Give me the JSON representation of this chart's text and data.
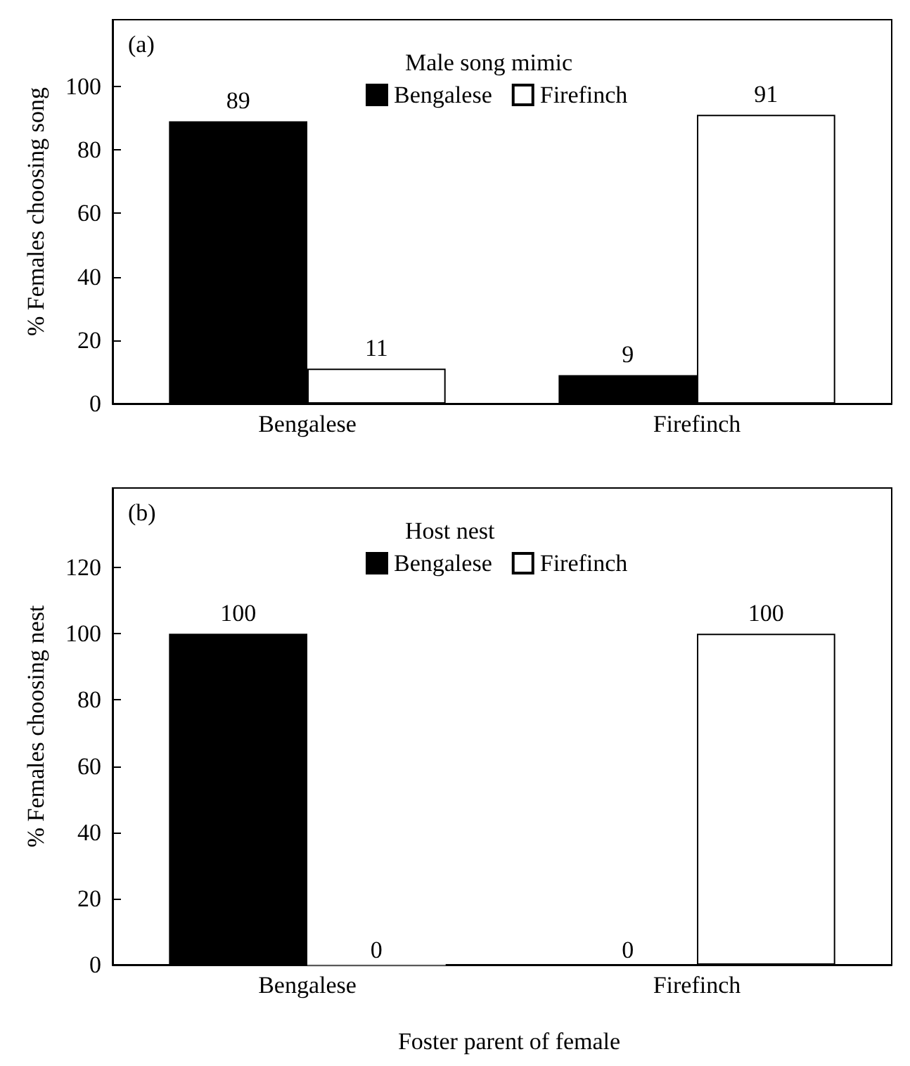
{
  "chart_data": [
    {
      "type": "bar",
      "title": "(a)",
      "ylabel": "% Females choosing song",
      "legend_title": "Male song mimic",
      "categories": [
        "Bengalese",
        "Firefinch"
      ],
      "series": [
        {
          "name": "Bengalese",
          "color": "#000000",
          "values": [
            89,
            9
          ]
        },
        {
          "name": "Firefinch",
          "color": "#ffffff",
          "values": [
            11,
            91
          ]
        }
      ],
      "ylim": [
        0,
        121
      ],
      "yticks": [
        0,
        20,
        40,
        60,
        80,
        100
      ],
      "data_labels": true,
      "legend": "top right",
      "grid": false
    },
    {
      "type": "bar",
      "title": "(b)",
      "ylabel": "% Females choosing nest",
      "xlabel": "Foster parent of female",
      "legend_title": "Host nest",
      "categories": [
        "Bengalese",
        "Firefinch"
      ],
      "series": [
        {
          "name": "Bengalese",
          "color": "#000000",
          "values": [
            100,
            0
          ]
        },
        {
          "name": "Firefinch",
          "color": "#ffffff",
          "values": [
            0,
            100
          ]
        }
      ],
      "ylim": [
        0,
        144
      ],
      "yticks": [
        0,
        20,
        40,
        60,
        80,
        100,
        120
      ],
      "data_labels": true,
      "legend": "top right",
      "grid": false
    }
  ]
}
